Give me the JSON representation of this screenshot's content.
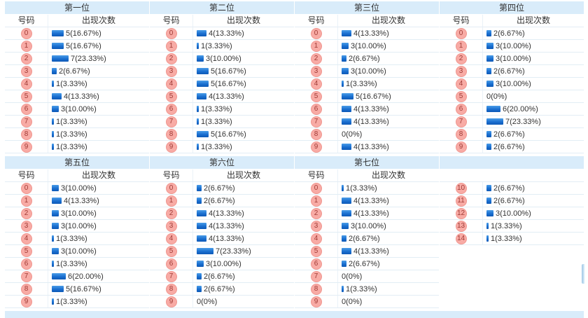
{
  "labels": {
    "number_col": "号码",
    "count_col": "出现次数"
  },
  "colors": {
    "band_bg": "#d9ecfa",
    "bar_blue": "#1a6fd0",
    "badge_bg": "#f8aba5",
    "badge_border": "#f0968f",
    "badge_text": "#a03b36"
  },
  "tables": [
    {
      "title": "第一位",
      "show_headers": true,
      "rows": [
        {
          "n": "0",
          "c": 5,
          "t": "5(16.67%)"
        },
        {
          "n": "1",
          "c": 5,
          "t": "5(16.67%)"
        },
        {
          "n": "2",
          "c": 7,
          "t": "7(23.33%)"
        },
        {
          "n": "3",
          "c": 2,
          "t": "2(6.67%)"
        },
        {
          "n": "4",
          "c": 1,
          "t": "1(3.33%)"
        },
        {
          "n": "5",
          "c": 4,
          "t": "4(13.33%)"
        },
        {
          "n": "6",
          "c": 3,
          "t": "3(10.00%)"
        },
        {
          "n": "7",
          "c": 1,
          "t": "1(3.33%)"
        },
        {
          "n": "8",
          "c": 1,
          "t": "1(3.33%)"
        },
        {
          "n": "9",
          "c": 1,
          "t": "1(3.33%)"
        }
      ]
    },
    {
      "title": "第二位",
      "show_headers": true,
      "rows": [
        {
          "n": "0",
          "c": 4,
          "t": "4(13.33%)"
        },
        {
          "n": "1",
          "c": 1,
          "t": "1(3.33%)"
        },
        {
          "n": "2",
          "c": 3,
          "t": "3(10.00%)"
        },
        {
          "n": "3",
          "c": 5,
          "t": "5(16.67%)"
        },
        {
          "n": "4",
          "c": 5,
          "t": "5(16.67%)"
        },
        {
          "n": "5",
          "c": 4,
          "t": "4(13.33%)"
        },
        {
          "n": "6",
          "c": 1,
          "t": "1(3.33%)"
        },
        {
          "n": "7",
          "c": 1,
          "t": "1(3.33%)"
        },
        {
          "n": "8",
          "c": 5,
          "t": "5(16.67%)"
        },
        {
          "n": "9",
          "c": 1,
          "t": "1(3.33%)"
        }
      ]
    },
    {
      "title": "第三位",
      "show_headers": true,
      "rows": [
        {
          "n": "0",
          "c": 4,
          "t": "4(13.33%)"
        },
        {
          "n": "1",
          "c": 3,
          "t": "3(10.00%)"
        },
        {
          "n": "2",
          "c": 2,
          "t": "2(6.67%)"
        },
        {
          "n": "3",
          "c": 3,
          "t": "3(10.00%)"
        },
        {
          "n": "4",
          "c": 1,
          "t": "1(3.33%)"
        },
        {
          "n": "5",
          "c": 5,
          "t": "5(16.67%)"
        },
        {
          "n": "6",
          "c": 4,
          "t": "4(13.33%)"
        },
        {
          "n": "7",
          "c": 4,
          "t": "4(13.33%)"
        },
        {
          "n": "8",
          "c": 0,
          "t": "0(0%)"
        },
        {
          "n": "9",
          "c": 4,
          "t": "4(13.33%)"
        }
      ]
    },
    {
      "title": "第四位",
      "show_headers": true,
      "rows": [
        {
          "n": "0",
          "c": 2,
          "t": "2(6.67%)"
        },
        {
          "n": "1",
          "c": 3,
          "t": "3(10.00%)"
        },
        {
          "n": "2",
          "c": 3,
          "t": "3(10.00%)"
        },
        {
          "n": "3",
          "c": 2,
          "t": "2(6.67%)"
        },
        {
          "n": "4",
          "c": 3,
          "t": "3(10.00%)"
        },
        {
          "n": "5",
          "c": 0,
          "t": "0(0%)"
        },
        {
          "n": "6",
          "c": 6,
          "t": "6(20.00%)"
        },
        {
          "n": "7",
          "c": 7,
          "t": "7(23.33%)"
        },
        {
          "n": "8",
          "c": 2,
          "t": "2(6.67%)"
        },
        {
          "n": "9",
          "c": 2,
          "t": "2(6.67%)"
        }
      ]
    },
    {
      "title": "第五位",
      "show_headers": true,
      "rows": [
        {
          "n": "0",
          "c": 3,
          "t": "3(10.00%)"
        },
        {
          "n": "1",
          "c": 4,
          "t": "4(13.33%)"
        },
        {
          "n": "2",
          "c": 3,
          "t": "3(10.00%)"
        },
        {
          "n": "3",
          "c": 3,
          "t": "3(10.00%)"
        },
        {
          "n": "4",
          "c": 1,
          "t": "1(3.33%)"
        },
        {
          "n": "5",
          "c": 3,
          "t": "3(10.00%)"
        },
        {
          "n": "6",
          "c": 1,
          "t": "1(3.33%)"
        },
        {
          "n": "7",
          "c": 6,
          "t": "6(20.00%)"
        },
        {
          "n": "8",
          "c": 5,
          "t": "5(16.67%)"
        },
        {
          "n": "9",
          "c": 1,
          "t": "1(3.33%)"
        }
      ]
    },
    {
      "title": "第六位",
      "show_headers": true,
      "rows": [
        {
          "n": "0",
          "c": 2,
          "t": "2(6.67%)"
        },
        {
          "n": "1",
          "c": 2,
          "t": "2(6.67%)"
        },
        {
          "n": "2",
          "c": 4,
          "t": "4(13.33%)"
        },
        {
          "n": "3",
          "c": 4,
          "t": "4(13.33%)"
        },
        {
          "n": "4",
          "c": 4,
          "t": "4(13.33%)"
        },
        {
          "n": "5",
          "c": 7,
          "t": "7(23.33%)"
        },
        {
          "n": "6",
          "c": 3,
          "t": "3(10.00%)"
        },
        {
          "n": "7",
          "c": 2,
          "t": "2(6.67%)"
        },
        {
          "n": "8",
          "c": 2,
          "t": "2(6.67%)"
        },
        {
          "n": "9",
          "c": 0,
          "t": "0(0%)"
        }
      ]
    },
    {
      "title": "第七位",
      "show_headers": true,
      "rows": [
        {
          "n": "0",
          "c": 1,
          "t": "1(3.33%)"
        },
        {
          "n": "1",
          "c": 4,
          "t": "4(13.33%)"
        },
        {
          "n": "2",
          "c": 4,
          "t": "4(13.33%)"
        },
        {
          "n": "3",
          "c": 3,
          "t": "3(10.00%)"
        },
        {
          "n": "4",
          "c": 2,
          "t": "2(6.67%)"
        },
        {
          "n": "5",
          "c": 4,
          "t": "4(13.33%)"
        },
        {
          "n": "6",
          "c": 2,
          "t": "2(6.67%)"
        },
        {
          "n": "7",
          "c": 0,
          "t": "0(0%)"
        },
        {
          "n": "8",
          "c": 1,
          "t": "1(3.33%)"
        },
        {
          "n": "9",
          "c": 0,
          "t": "0(0%)"
        }
      ]
    },
    {
      "title": "",
      "show_headers": false,
      "rows": [
        {
          "n": "10",
          "c": 2,
          "t": "2(6.67%)"
        },
        {
          "n": "11",
          "c": 2,
          "t": "2(6.67%)"
        },
        {
          "n": "12",
          "c": 3,
          "t": "3(10.00%)"
        },
        {
          "n": "13",
          "c": 1,
          "t": "1(3.33%)"
        },
        {
          "n": "14",
          "c": 1,
          "t": "1(3.33%)"
        }
      ]
    }
  ],
  "chart_data": [
    {
      "type": "bar",
      "title": "第一位",
      "xlabel": "号码",
      "ylabel": "出现次数",
      "categories": [
        "0",
        "1",
        "2",
        "3",
        "4",
        "5",
        "6",
        "7",
        "8",
        "9"
      ],
      "values": [
        5,
        5,
        7,
        2,
        1,
        4,
        3,
        1,
        1,
        1
      ],
      "percent": [
        "16.67%",
        "16.67%",
        "23.33%",
        "6.67%",
        "3.33%",
        "13.33%",
        "10.00%",
        "3.33%",
        "3.33%",
        "3.33%"
      ]
    },
    {
      "type": "bar",
      "title": "第二位",
      "xlabel": "号码",
      "ylabel": "出现次数",
      "categories": [
        "0",
        "1",
        "2",
        "3",
        "4",
        "5",
        "6",
        "7",
        "8",
        "9"
      ],
      "values": [
        4,
        1,
        3,
        5,
        5,
        4,
        1,
        1,
        5,
        1
      ],
      "percent": [
        "13.33%",
        "3.33%",
        "10.00%",
        "16.67%",
        "16.67%",
        "13.33%",
        "3.33%",
        "3.33%",
        "16.67%",
        "3.33%"
      ]
    },
    {
      "type": "bar",
      "title": "第三位",
      "xlabel": "号码",
      "ylabel": "出现次数",
      "categories": [
        "0",
        "1",
        "2",
        "3",
        "4",
        "5",
        "6",
        "7",
        "8",
        "9"
      ],
      "values": [
        4,
        3,
        2,
        3,
        1,
        5,
        4,
        4,
        0,
        4
      ],
      "percent": [
        "13.33%",
        "10.00%",
        "6.67%",
        "10.00%",
        "3.33%",
        "16.67%",
        "13.33%",
        "13.33%",
        "0%",
        "13.33%"
      ]
    },
    {
      "type": "bar",
      "title": "第四位",
      "xlabel": "号码",
      "ylabel": "出现次数",
      "categories": [
        "0",
        "1",
        "2",
        "3",
        "4",
        "5",
        "6",
        "7",
        "8",
        "9"
      ],
      "values": [
        2,
        3,
        3,
        2,
        3,
        0,
        6,
        7,
        2,
        2
      ],
      "percent": [
        "6.67%",
        "10.00%",
        "10.00%",
        "6.67%",
        "10.00%",
        "0%",
        "20.00%",
        "23.33%",
        "6.67%",
        "6.67%"
      ]
    },
    {
      "type": "bar",
      "title": "第五位",
      "xlabel": "号码",
      "ylabel": "出现次数",
      "categories": [
        "0",
        "1",
        "2",
        "3",
        "4",
        "5",
        "6",
        "7",
        "8",
        "9"
      ],
      "values": [
        3,
        4,
        3,
        3,
        1,
        3,
        1,
        6,
        5,
        1
      ],
      "percent": [
        "10.00%",
        "13.33%",
        "10.00%",
        "10.00%",
        "3.33%",
        "10.00%",
        "3.33%",
        "20.00%",
        "16.67%",
        "3.33%"
      ]
    },
    {
      "type": "bar",
      "title": "第六位",
      "xlabel": "号码",
      "ylabel": "出现次数",
      "categories": [
        "0",
        "1",
        "2",
        "3",
        "4",
        "5",
        "6",
        "7",
        "8",
        "9"
      ],
      "values": [
        2,
        2,
        4,
        4,
        4,
        7,
        3,
        2,
        2,
        0
      ],
      "percent": [
        "6.67%",
        "6.67%",
        "13.33%",
        "13.33%",
        "13.33%",
        "23.33%",
        "10.00%",
        "6.67%",
        "6.67%",
        "0%"
      ]
    },
    {
      "type": "bar",
      "title": "第七位",
      "xlabel": "号码",
      "ylabel": "出现次数",
      "categories": [
        "0",
        "1",
        "2",
        "3",
        "4",
        "5",
        "6",
        "7",
        "8",
        "9"
      ],
      "values": [
        1,
        4,
        4,
        3,
        2,
        4,
        2,
        0,
        1,
        0
      ],
      "percent": [
        "3.33%",
        "13.33%",
        "13.33%",
        "10.00%",
        "6.67%",
        "13.33%",
        "6.67%",
        "0%",
        "3.33%",
        "0%"
      ]
    },
    {
      "type": "bar",
      "title": "第七位(续 10-14)",
      "xlabel": "号码",
      "ylabel": "出现次数",
      "categories": [
        "10",
        "11",
        "12",
        "13",
        "14"
      ],
      "values": [
        2,
        2,
        3,
        1,
        1
      ],
      "percent": [
        "6.67%",
        "6.67%",
        "10.00%",
        "3.33%",
        "3.33%"
      ]
    }
  ]
}
